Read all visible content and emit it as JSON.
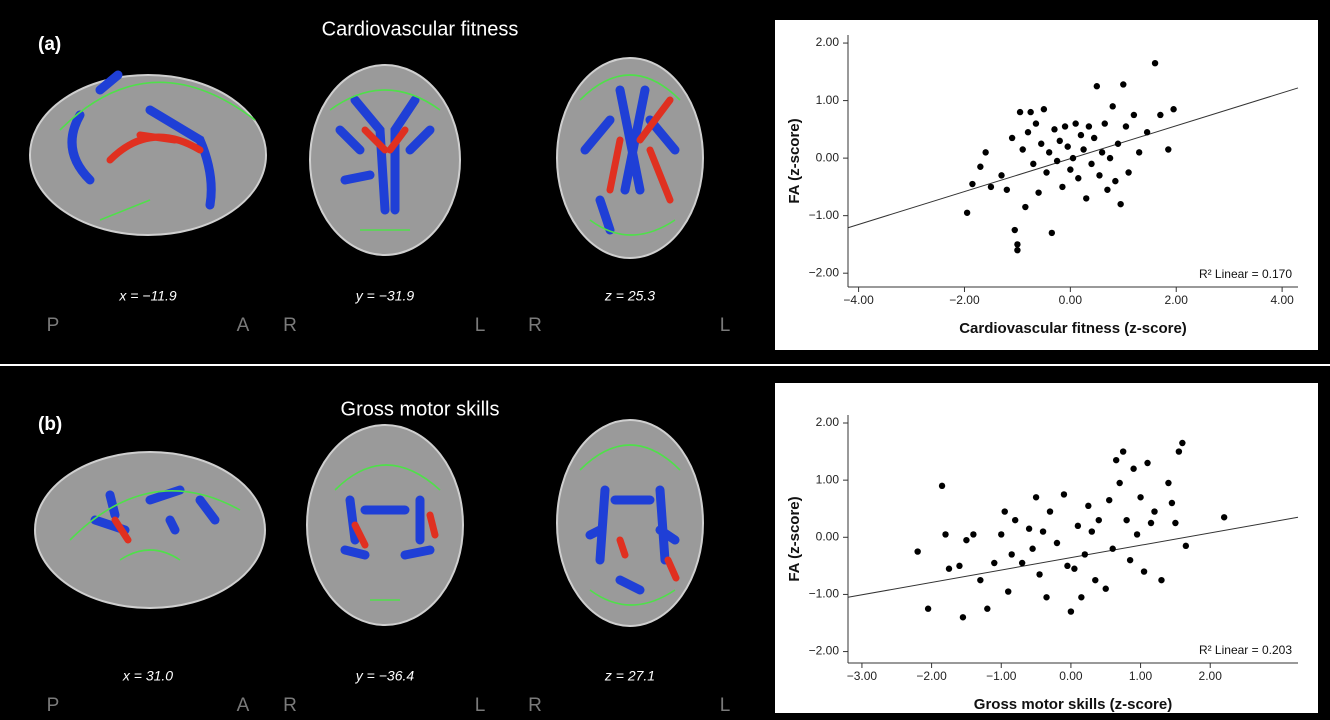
{
  "panels": [
    {
      "label": "(a)",
      "title": "Cardiovascular fitness",
      "slices": [
        {
          "coord": "x = −11.9",
          "orient": [
            "P",
            "A"
          ]
        },
        {
          "coord": "y = −31.9",
          "orient": [
            "R",
            "L"
          ]
        },
        {
          "coord": "z = 25.3",
          "orient": [
            "R",
            "L"
          ]
        }
      ]
    },
    {
      "label": "(b)",
      "title": "Gross motor skills",
      "slices": [
        {
          "coord": "x = 31.0",
          "orient": [
            "P",
            "A"
          ]
        },
        {
          "coord": "y = −36.4",
          "orient": [
            "R",
            "L"
          ]
        },
        {
          "coord": "z = 27.1",
          "orient": [
            "R",
            "L"
          ]
        }
      ]
    }
  ],
  "chart_data": [
    {
      "type": "scatter",
      "x_label": "Cardiovascular fitness (z-score)",
      "y_label": "FA (z-score)",
      "annotation": "R² Linear = 0.170",
      "color": "#000000",
      "xlim": [
        -4.2,
        4.3
      ],
      "ylim": [
        -2.24,
        2.14
      ],
      "xticks": [
        {
          "value": -4,
          "label": "−4.00"
        },
        {
          "value": -2,
          "label": "−2.00"
        },
        {
          "value": 0,
          "label": "0.00"
        },
        {
          "value": 2,
          "label": "2.00"
        },
        {
          "value": 4,
          "label": "4.00"
        }
      ],
      "yticks": [
        {
          "value": -2,
          "label": "−2.00"
        },
        {
          "value": -1,
          "label": "−1.00"
        },
        {
          "value": 0,
          "label": "0.00"
        },
        {
          "value": 1,
          "label": "1.00"
        },
        {
          "value": 2,
          "label": "2.00"
        }
      ],
      "x": [
        -1.95,
        -1.85,
        -1.7,
        -1.6,
        -1.5,
        -1.3,
        -1.2,
        -1.1,
        -1.05,
        -1.0,
        -1.0,
        -0.95,
        -0.9,
        -0.85,
        -0.8,
        -0.75,
        -0.7,
        -0.65,
        -0.6,
        -0.55,
        -0.5,
        -0.45,
        -0.4,
        -0.35,
        -0.3,
        -0.25,
        -0.2,
        -0.15,
        -0.1,
        -0.05,
        0.0,
        0.05,
        0.1,
        0.15,
        0.2,
        0.25,
        0.3,
        0.35,
        0.4,
        0.45,
        0.5,
        0.55,
        0.6,
        0.65,
        0.7,
        0.75,
        0.8,
        0.85,
        0.9,
        0.95,
        1.0,
        1.05,
        1.1,
        1.2,
        1.3,
        1.45,
        1.6,
        1.7,
        1.85,
        1.95
      ],
      "values": [
        -0.95,
        -0.45,
        -0.15,
        0.1,
        -0.5,
        -0.3,
        -0.55,
        0.35,
        -1.25,
        -1.6,
        -1.5,
        0.8,
        0.15,
        -0.85,
        0.45,
        0.8,
        -0.1,
        0.6,
        -0.6,
        0.25,
        0.85,
        -0.25,
        0.1,
        -1.3,
        0.5,
        -0.05,
        0.3,
        -0.5,
        0.55,
        0.2,
        -0.2,
        0.0,
        0.6,
        -0.35,
        0.4,
        0.15,
        -0.7,
        0.55,
        -0.1,
        0.35,
        1.25,
        -0.3,
        0.1,
        0.6,
        -0.55,
        0.0,
        0.9,
        -0.4,
        0.25,
        -0.8,
        1.28,
        0.55,
        -0.25,
        0.75,
        0.1,
        0.45,
        1.65,
        0.75,
        0.15,
        0.85
      ],
      "trendline": {
        "x": [
          -4.2,
          4.3
        ],
        "values": [
          -1.21,
          1.22
        ]
      }
    },
    {
      "type": "scatter",
      "x_label": "Gross motor skills (z-score)",
      "y_label": "FA (z-score)",
      "annotation": "R² Linear = 0.203",
      "color": "#000000",
      "xlim": [
        -3.2,
        3.26
      ],
      "ylim": [
        -2.2,
        2.14
      ],
      "xticks": [
        {
          "value": -3,
          "label": "−3.00"
        },
        {
          "value": -2,
          "label": "−2.00"
        },
        {
          "value": -1,
          "label": "−1.00"
        },
        {
          "value": 0,
          "label": "0.00"
        },
        {
          "value": 1,
          "label": "1.00"
        },
        {
          "value": 2,
          "label": "2.00"
        }
      ],
      "yticks": [
        {
          "value": -2,
          "label": "−2.00"
        },
        {
          "value": -1,
          "label": "−1.00"
        },
        {
          "value": 0,
          "label": "0.00"
        },
        {
          "value": 1,
          "label": "1.00"
        },
        {
          "value": 2,
          "label": "2.00"
        }
      ],
      "x": [
        -2.2,
        -2.05,
        -1.85,
        -1.8,
        -1.75,
        -1.6,
        -1.55,
        -1.5,
        -1.4,
        -1.3,
        -1.2,
        -1.1,
        -1.0,
        -0.95,
        -0.9,
        -0.85,
        -0.8,
        -0.7,
        -0.6,
        -0.55,
        -0.5,
        -0.45,
        -0.4,
        -0.35,
        -0.3,
        -0.2,
        -0.1,
        -0.05,
        0.0,
        0.05,
        0.1,
        0.15,
        0.2,
        0.25,
        0.3,
        0.35,
        0.4,
        0.5,
        0.55,
        0.6,
        0.65,
        0.7,
        0.75,
        0.8,
        0.85,
        0.9,
        0.95,
        1.0,
        1.05,
        1.1,
        1.15,
        1.2,
        1.3,
        1.4,
        1.45,
        1.5,
        1.55,
        1.6,
        1.65,
        2.2
      ],
      "values": [
        -0.25,
        -1.25,
        0.9,
        0.05,
        -0.55,
        -0.5,
        -1.4,
        -0.05,
        0.05,
        -0.75,
        -1.25,
        -0.45,
        0.05,
        0.45,
        -0.95,
        -0.3,
        0.3,
        -0.45,
        0.15,
        -0.2,
        0.7,
        -0.65,
        0.1,
        -1.05,
        0.45,
        -0.1,
        0.75,
        -0.5,
        -1.3,
        -0.55,
        0.2,
        -1.05,
        -0.3,
        0.55,
        0.1,
        -0.75,
        0.3,
        -0.9,
        0.65,
        -0.2,
        1.35,
        0.95,
        1.5,
        0.3,
        -0.4,
        1.2,
        0.05,
        0.7,
        -0.6,
        1.3,
        0.25,
        0.45,
        -0.75,
        0.95,
        0.6,
        0.25,
        1.5,
        1.65,
        -0.15,
        0.35
      ],
      "trendline": {
        "x": [
          -3.2,
          3.26
        ],
        "values": [
          -1.05,
          0.35
        ]
      }
    }
  ]
}
